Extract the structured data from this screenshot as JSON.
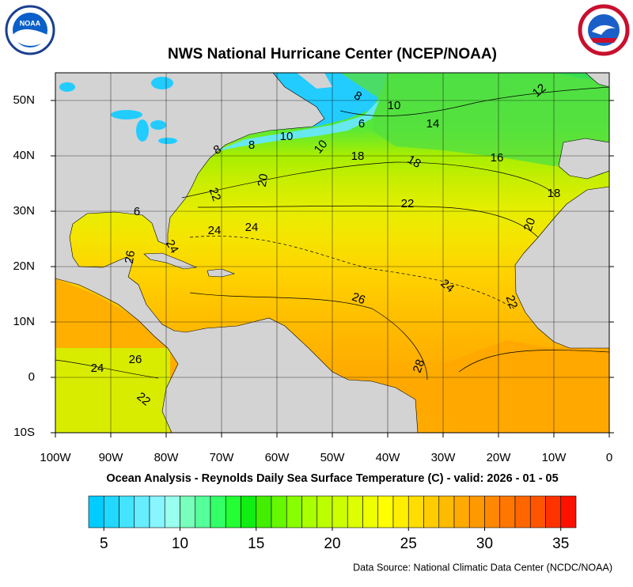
{
  "header": {
    "title": "NWS National Hurricane Center (NCEP/NOAA)",
    "noaa_logo": "NOAA"
  },
  "map": {
    "lat_labels": [
      "50N",
      "40N",
      "30N",
      "20N",
      "10N",
      "0",
      "10S"
    ],
    "lon_labels": [
      "100W",
      "90W",
      "80W",
      "70W",
      "60W",
      "50W",
      "40W",
      "30W",
      "20W",
      "10W",
      "0"
    ],
    "contour_labels": [
      "8",
      "10",
      "6",
      "14",
      "12",
      "8",
      "8",
      "10",
      "10",
      "18",
      "18",
      "16",
      "20",
      "22",
      "22",
      "24",
      "24",
      "18",
      "20",
      "26",
      "26",
      "24",
      "22",
      "28",
      "24",
      "26",
      "22",
      "6",
      "24"
    ]
  },
  "caption": "Ocean Analysis - Reynolds Daily Sea Surface Temperature (C) - valid: 2026 - 01 - 05",
  "colorbar": {
    "lim": [
      4,
      36
    ],
    "ticks": [
      5,
      10,
      15,
      20,
      25,
      30,
      35
    ],
    "colors": [
      "#00ccff",
      "#22d8ff",
      "#44e4ff",
      "#66eeff",
      "#88f6ff",
      "#99ffee",
      "#77ffbb",
      "#55ff99",
      "#33ff66",
      "#22ff33",
      "#11ee11",
      "#44ee00",
      "#66f800",
      "#88ff00",
      "#aaff00",
      "#bbff00",
      "#ccff00",
      "#ddff00",
      "#eeff00",
      "#ffff00",
      "#ffee00",
      "#ffdd00",
      "#ffcc00",
      "#ffbb00",
      "#ffaa00",
      "#ff9900",
      "#ff8800",
      "#ff7700",
      "#ff6600",
      "#ff5500",
      "#ff3300",
      "#ff1100"
    ]
  },
  "source": "Data Source: National Climatic Data Center (NCDC/NOAA)"
}
